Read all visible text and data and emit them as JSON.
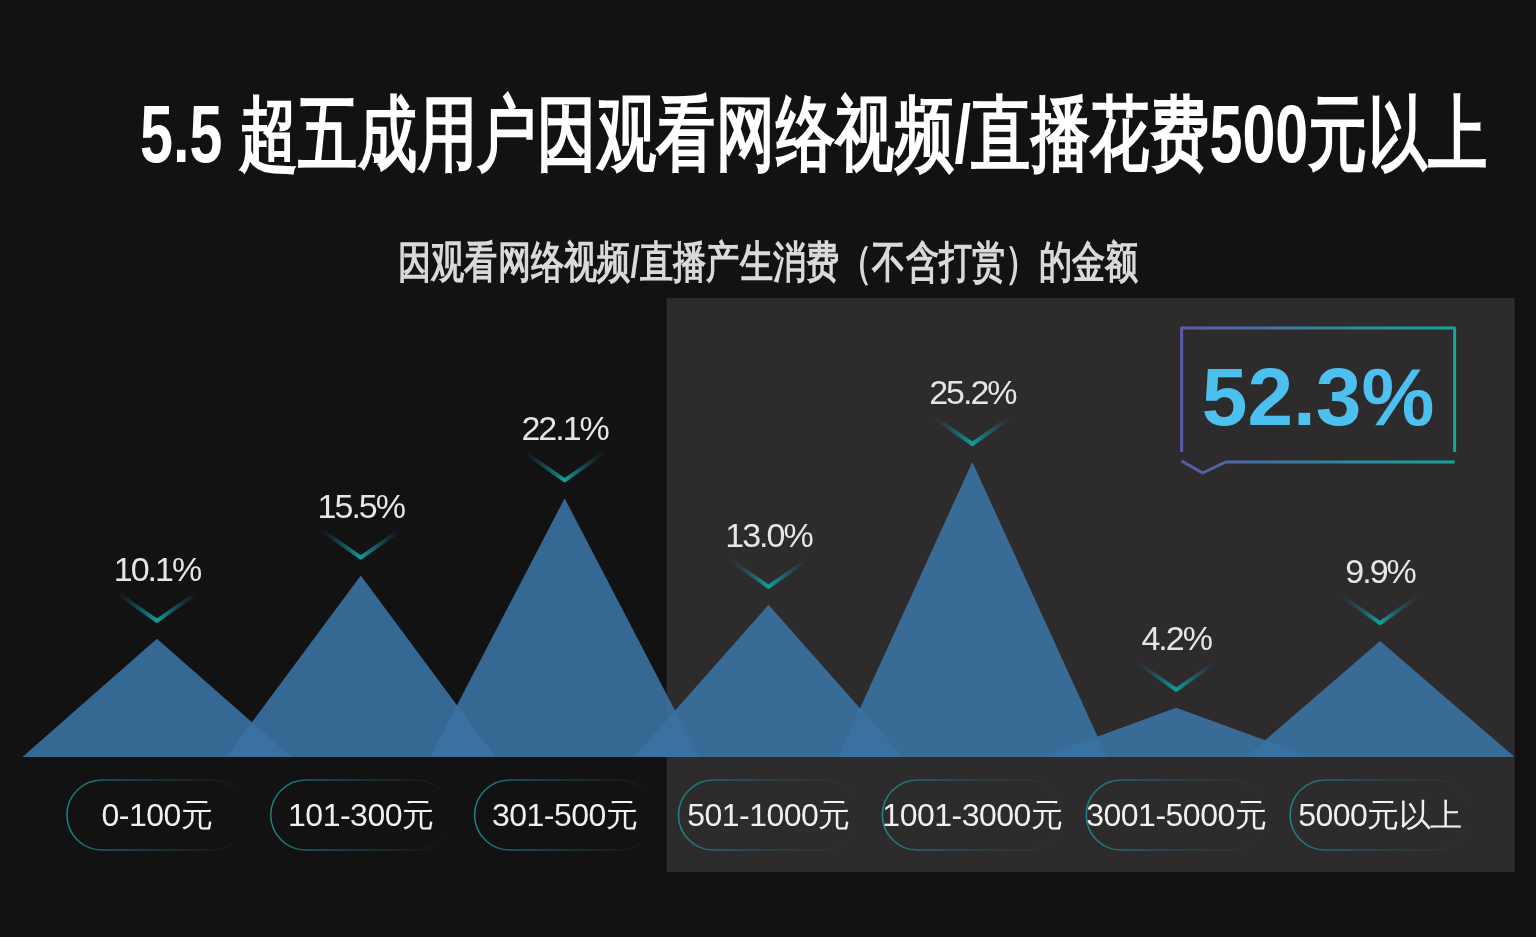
{
  "chart_data": {
    "type": "bar",
    "title": "5.5 超五成用户因观看网络视频/直播花费500元以上",
    "subtitle": "因观看网络视频/直播产生消费（不含打赏）的金额",
    "categories": [
      "0-100元",
      "101-300元",
      "301-500元",
      "501-1000元",
      "1001-3000元",
      "3001-5000元",
      "5000元以上"
    ],
    "values": [
      10.1,
      15.5,
      22.1,
      13.0,
      25.2,
      4.2,
      9.9
    ],
    "value_labels": [
      "10.1%",
      "15.5%",
      "22.1%",
      "13.0%",
      "25.2%",
      "4.2%",
      "9.9%"
    ],
    "color": "#3a72a2",
    "bands": [
      {
        "axis": "x",
        "from": "501-1000元",
        "to": "5000元以上",
        "label": "52.3%",
        "color": "#2e2b2c"
      }
    ]
  }
}
